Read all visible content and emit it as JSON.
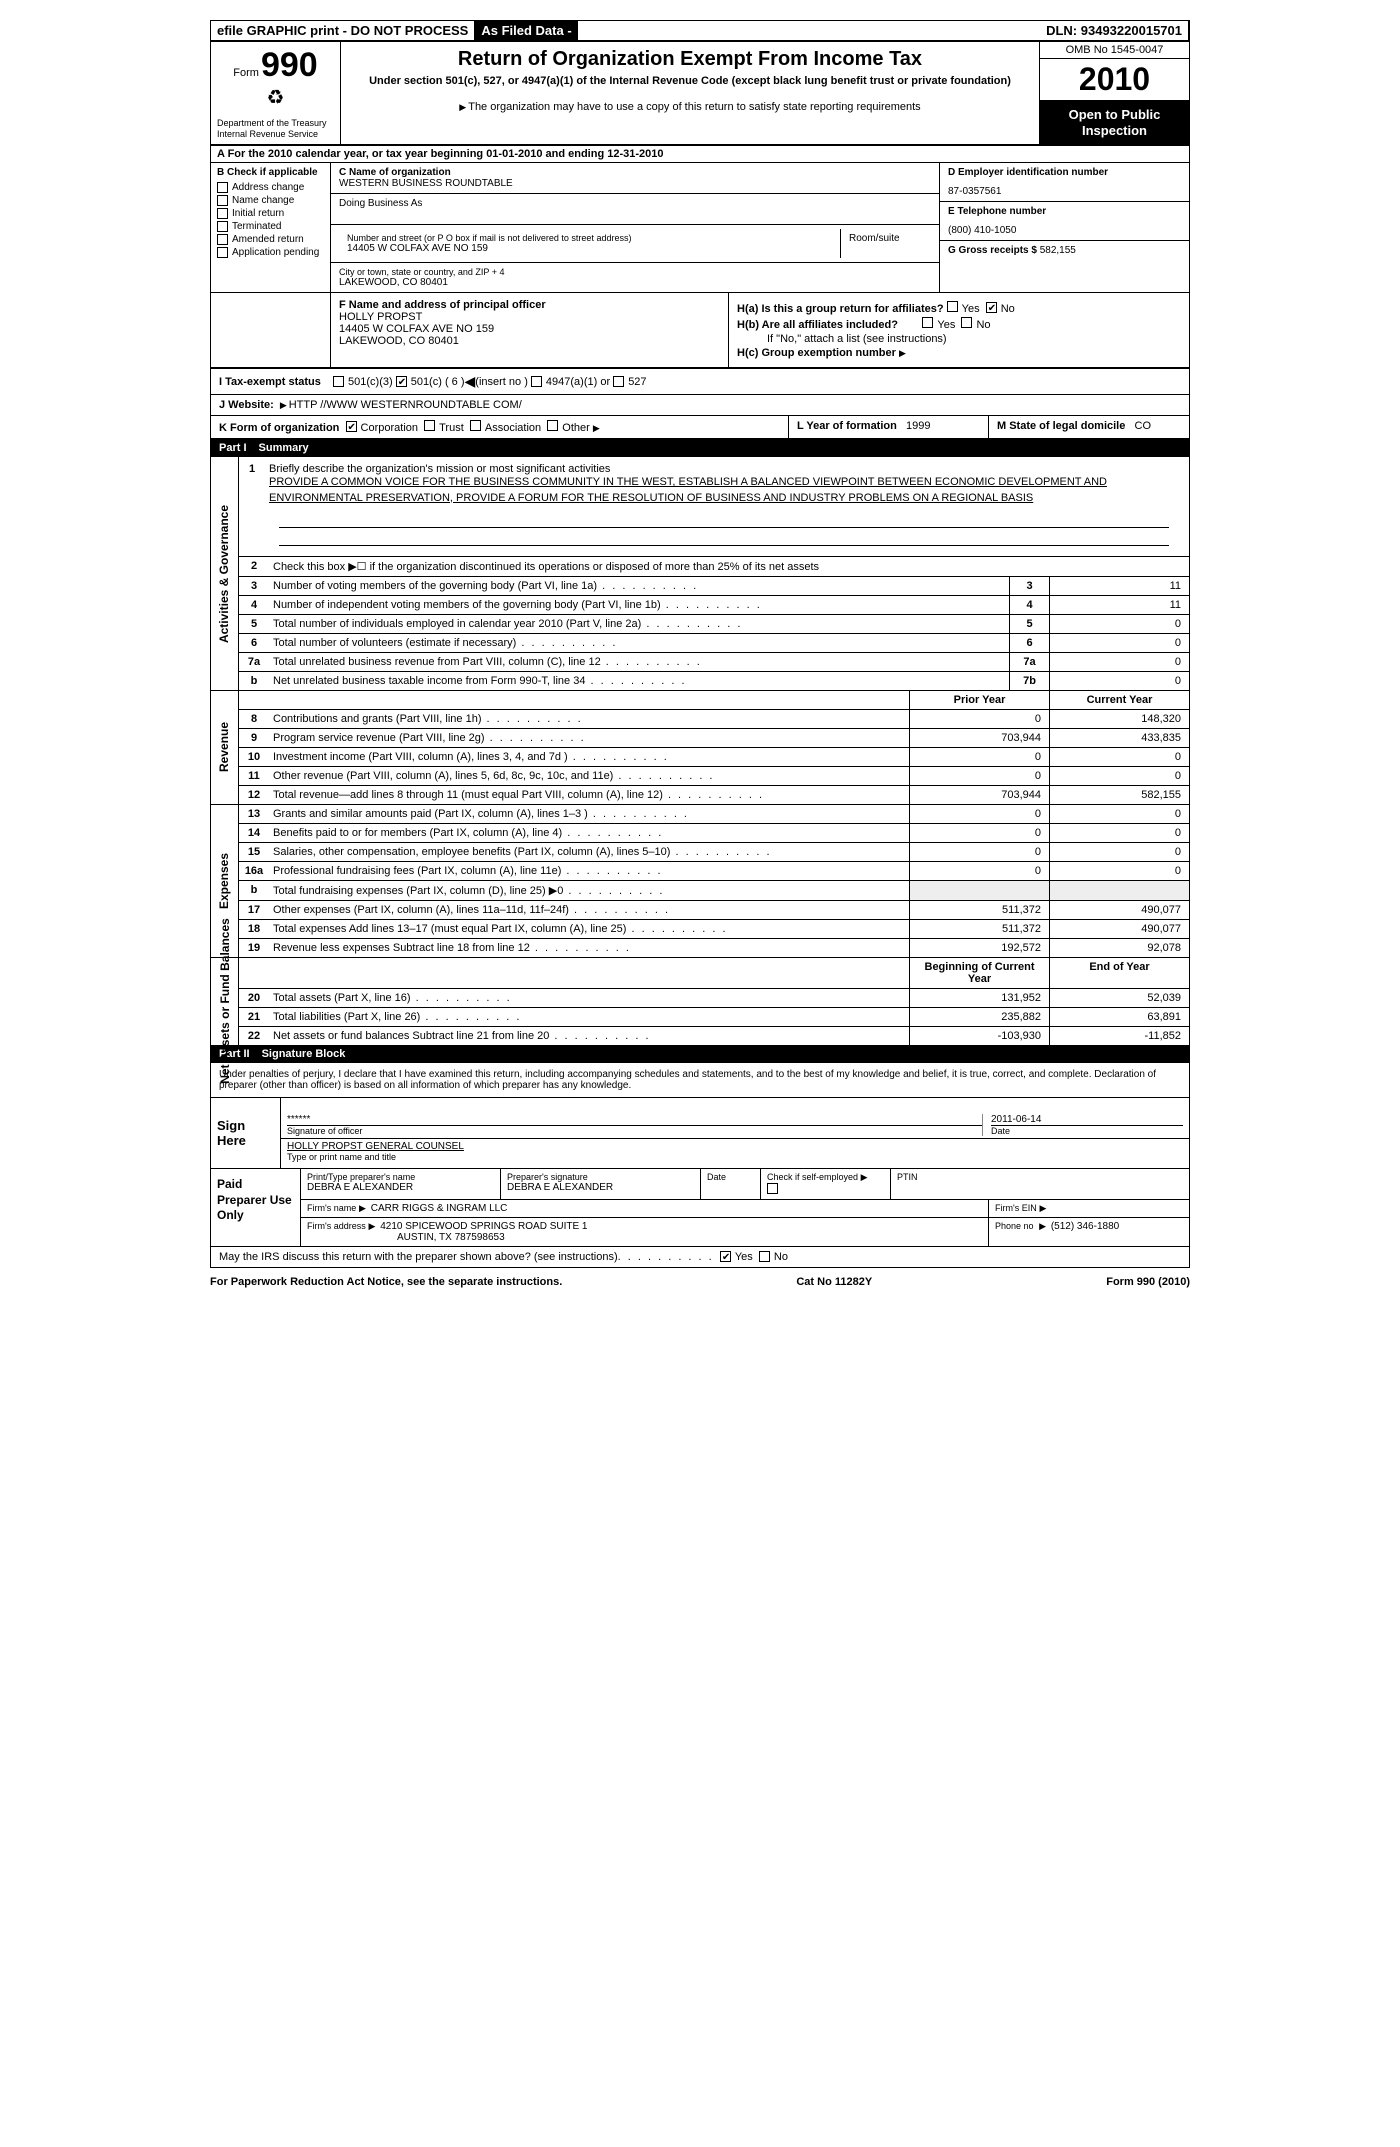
{
  "topbar": {
    "efile": "efile GRAPHIC print - DO NOT PROCESS",
    "asfiled": "As Filed Data -",
    "dln_label": "DLN:",
    "dln": "93493220015701"
  },
  "header": {
    "form_word": "Form",
    "form_num": "990",
    "dept1": "Department of the Treasury",
    "dept2": "Internal Revenue Service",
    "title": "Return of Organization Exempt From Income Tax",
    "sub": "Under section 501(c), 527, or 4947(a)(1) of the Internal Revenue Code (except black lung benefit trust or private foundation)",
    "note": "The organization may have to use a copy of this return to satisfy state reporting requirements",
    "omb": "OMB No 1545-0047",
    "year": "2010",
    "inspection": "Open to Public Inspection"
  },
  "row_a": "A  For the 2010 calendar year, or tax year beginning 01-01-2010    and ending 12-31-2010",
  "col_b": {
    "title": "B  Check if applicable",
    "items": [
      "Address change",
      "Name change",
      "Initial return",
      "Terminated",
      "Amended return",
      "Application pending"
    ]
  },
  "col_c": {
    "name_lbl": "C Name of organization",
    "name": "WESTERN BUSINESS ROUNDTABLE",
    "dba_lbl": "Doing Business As",
    "street_lbl": "Number and street (or P O  box if mail is not delivered to street address)",
    "street": "14405 W COLFAX AVE NO 159",
    "room_lbl": "Room/suite",
    "city_lbl": "City or town, state or country, and ZIP + 4",
    "city": "LAKEWOOD, CO  80401"
  },
  "col_d": {
    "ein_lbl": "D Employer identification number",
    "ein": "87-0357561",
    "tel_lbl": "E Telephone number",
    "tel": "(800) 410-1050",
    "gross_lbl": "G Gross receipts $",
    "gross": "582,155"
  },
  "row_f": {
    "lbl": "F  Name and address of principal officer",
    "name": "HOLLY PROPST",
    "street": "14405 W COLFAX AVE NO 159",
    "city": "LAKEWOOD, CO  80401"
  },
  "row_h": {
    "ha": "H(a)  Is this a group return for affiliates?",
    "hb": "H(b)  Are all affiliates included?",
    "hb_note": "If \"No,\" attach a list  (see instructions)",
    "hc": "H(c)   Group exemption number",
    "yes": "Yes",
    "no": "No"
  },
  "row_i": {
    "lbl": "I   Tax-exempt status",
    "opts": [
      "501(c)(3)",
      "501(c) ( 6 )",
      "(insert no )",
      "4947(a)(1) or",
      "527"
    ]
  },
  "row_j": {
    "lbl": "J   Website:",
    "val": "HTTP //WWW WESTERNROUNDTABLE COM/"
  },
  "row_k": {
    "lbl": "K Form of organization",
    "opts": [
      "Corporation",
      "Trust",
      "Association",
      "Other"
    ]
  },
  "row_l": {
    "lbl": "L Year of formation",
    "val": "1999"
  },
  "row_m": {
    "lbl": "M State of legal domicile",
    "val": "CO"
  },
  "part1": {
    "num": "Part I",
    "title": "Summary"
  },
  "mission": {
    "num": "1",
    "lbl": "Briefly describe the organization's mission or most significant activities",
    "text": "PROVIDE A COMMON VOICE FOR THE BUSINESS COMMUNITY IN THE WEST, ESTABLISH A BALANCED VIEWPOINT BETWEEN ECONOMIC DEVELOPMENT AND ENVIRONMENTAL PRESERVATION, PROVIDE A FORUM FOR THE RESOLUTION OF BUSINESS AND INDUSTRY PROBLEMS ON A REGIONAL BASIS"
  },
  "gov_lines": [
    {
      "n": "2",
      "t": "Check this box ▶☐ if the organization discontinued its operations or disposed of more than 25% of its net assets",
      "box": "",
      "v": ""
    },
    {
      "n": "3",
      "t": "Number of voting members of the governing body (Part VI, line 1a)",
      "box": "3",
      "v": "11"
    },
    {
      "n": "4",
      "t": "Number of independent voting members of the governing body (Part VI, line 1b)",
      "box": "4",
      "v": "11"
    },
    {
      "n": "5",
      "t": "Total number of individuals employed in calendar year 2010 (Part V, line 2a)",
      "box": "5",
      "v": "0"
    },
    {
      "n": "6",
      "t": "Total number of volunteers (estimate if necessary)",
      "box": "6",
      "v": "0"
    },
    {
      "n": "7a",
      "t": "Total unrelated business revenue from Part VIII, column (C), line 12",
      "box": "7a",
      "v": "0"
    },
    {
      "n": "b",
      "t": "Net unrelated business taxable income from Form 990-T, line 34",
      "box": "7b",
      "v": "0"
    }
  ],
  "col_headers": {
    "prior": "Prior Year",
    "current": "Current Year"
  },
  "rev_lines": [
    {
      "n": "8",
      "t": "Contributions and grants (Part VIII, line 1h)",
      "p": "0",
      "c": "148,320"
    },
    {
      "n": "9",
      "t": "Program service revenue (Part VIII, line 2g)",
      "p": "703,944",
      "c": "433,835"
    },
    {
      "n": "10",
      "t": "Investment income (Part VIII, column (A), lines 3, 4, and 7d )",
      "p": "0",
      "c": "0"
    },
    {
      "n": "11",
      "t": "Other revenue (Part VIII, column (A), lines 5, 6d, 8c, 9c, 10c, and 11e)",
      "p": "0",
      "c": "0"
    },
    {
      "n": "12",
      "t": "Total revenue—add lines 8 through 11 (must equal Part VIII, column (A), line 12)",
      "p": "703,944",
      "c": "582,155"
    }
  ],
  "exp_lines": [
    {
      "n": "13",
      "t": "Grants and similar amounts paid (Part IX, column (A), lines 1–3 )",
      "p": "0",
      "c": "0"
    },
    {
      "n": "14",
      "t": "Benefits paid to or for members (Part IX, column (A), line 4)",
      "p": "0",
      "c": "0"
    },
    {
      "n": "15",
      "t": "Salaries, other compensation, employee benefits (Part IX, column (A), lines 5–10)",
      "p": "0",
      "c": "0"
    },
    {
      "n": "16a",
      "t": "Professional fundraising fees (Part IX, column (A), line 11e)",
      "p": "0",
      "c": "0"
    },
    {
      "n": "b",
      "t": "Total fundraising expenses (Part IX, column (D), line 25) ▶0",
      "p": "",
      "c": ""
    },
    {
      "n": "17",
      "t": "Other expenses (Part IX, column (A), lines 11a–11d, 11f–24f)",
      "p": "511,372",
      "c": "490,077"
    },
    {
      "n": "18",
      "t": "Total expenses  Add lines 13–17 (must equal Part IX, column (A), line 25)",
      "p": "511,372",
      "c": "490,077"
    },
    {
      "n": "19",
      "t": "Revenue less expenses  Subtract line 18 from line 12",
      "p": "192,572",
      "c": "92,078"
    }
  ],
  "na_headers": {
    "begin": "Beginning of Current Year",
    "end": "End of Year"
  },
  "na_lines": [
    {
      "n": "20",
      "t": "Total assets (Part X, line 16)",
      "p": "131,952",
      "c": "52,039"
    },
    {
      "n": "21",
      "t": "Total liabilities (Part X, line 26)",
      "p": "235,882",
      "c": "63,891"
    },
    {
      "n": "22",
      "t": "Net assets or fund balances  Subtract line 21 from line 20",
      "p": "-103,930",
      "c": "-11,852"
    }
  ],
  "vlabels": {
    "gov": "Activities & Governance",
    "rev": "Revenue",
    "exp": "Expenses",
    "na": "Net Assets or Fund Balances"
  },
  "part2": {
    "num": "Part II",
    "title": "Signature Block"
  },
  "perjury": "Under penalties of perjury, I declare that I have examined this return, including accompanying schedules and statements, and to the best of my knowledge and belief, it is true, correct, and complete. Declaration of preparer (other than officer) is based on all information of which preparer has any knowledge.",
  "sign": {
    "here": "Sign Here",
    "stars": "******",
    "sig_lbl": "Signature of officer",
    "date": "2011-06-14",
    "date_lbl": "Date",
    "name": "HOLLY PROPST  GENERAL COUNSEL",
    "name_lbl": "Type or print name and title"
  },
  "paid": {
    "lbl": "Paid Preparer Use Only",
    "prep_name_lbl": "Print/Type preparer's name",
    "prep_name": "DEBRA E ALEXANDER",
    "prep_sig_lbl": "Preparer's signature",
    "prep_sig": "DEBRA E ALEXANDER",
    "date_lbl": "Date",
    "self_lbl": "Check if self-employed",
    "ptin_lbl": "PTIN",
    "firm_name_lbl": "Firm's name",
    "firm_name": "CARR RIGGS & INGRAM LLC",
    "firm_ein_lbl": "Firm's EIN",
    "firm_addr_lbl": "Firm's address",
    "firm_addr1": "4210 SPICEWOOD SPRINGS ROAD SUITE 1",
    "firm_addr2": "AUSTIN, TX  787598653",
    "phone_lbl": "Phone no",
    "phone": "(512) 346-1880"
  },
  "discuss": {
    "q": "May the IRS discuss this return with the preparer shown above? (see instructions)",
    "yes": "Yes",
    "no": "No"
  },
  "footer": {
    "left": "For Paperwork Reduction Act Notice, see the separate instructions.",
    "mid": "Cat No  11282Y",
    "right": "Form 990 (2010)"
  }
}
